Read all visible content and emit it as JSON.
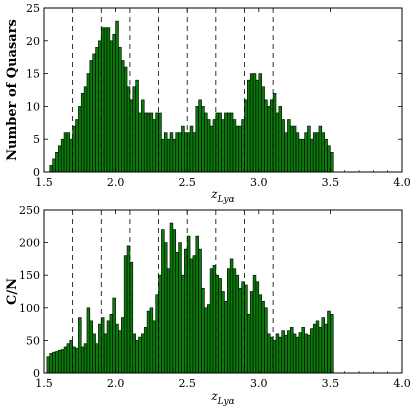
{
  "chart_data": [
    {
      "type": "bar",
      "xlabel": "z_Lyα",
      "ylabel": "Number of Quasars",
      "xlim": [
        1.5,
        4.0
      ],
      "ylim": [
        0,
        25
      ],
      "xticks": [
        "1.5",
        "2.0",
        "2.5",
        "3.0",
        "3.5",
        "4.0"
      ],
      "yticks": [
        "0",
        "5",
        "10",
        "15",
        "20",
        "25"
      ],
      "dashed_lines_x": [
        1.7,
        1.9,
        2.1,
        2.3,
        2.5,
        2.7,
        2.9,
        3.1
      ],
      "bar_color": "#0a7a0a",
      "bin_start": 1.52,
      "bin_width": 0.02,
      "values": [
        0,
        1,
        2,
        3,
        4,
        5,
        6,
        6,
        5,
        7,
        8,
        10,
        12,
        13,
        15,
        17,
        18,
        19,
        20,
        22,
        22,
        22,
        20,
        21,
        23,
        19,
        17,
        16,
        13,
        11,
        13,
        14,
        9,
        11,
        9,
        9,
        9,
        8,
        9,
        9,
        5,
        6,
        5,
        6,
        5,
        6,
        6,
        7,
        6,
        6,
        7,
        6,
        10,
        11,
        10,
        9,
        8,
        7,
        8,
        9,
        9,
        8,
        9,
        9,
        9,
        8,
        7,
        7,
        8,
        11,
        14,
        15,
        15,
        14,
        15,
        13,
        11,
        10,
        11,
        12,
        9,
        10,
        8,
        6,
        8,
        7,
        7,
        6,
        5,
        5,
        6,
        7,
        5,
        6,
        6,
        7,
        6,
        5,
        4,
        3
      ]
    },
    {
      "type": "bar",
      "xlabel": "z_Lyα",
      "ylabel": "C/N",
      "xlim": [
        1.5,
        4.0
      ],
      "ylim": [
        0,
        250
      ],
      "xticks": [
        "1.5",
        "2.0",
        "2.5",
        "3.0",
        "3.5",
        "4.0"
      ],
      "yticks": [
        "0",
        "50",
        "100",
        "150",
        "200",
        "250"
      ],
      "dashed_lines_x": [
        1.7,
        1.9,
        2.1,
        2.3,
        2.5,
        2.7,
        2.9,
        3.1
      ],
      "bar_color": "#0a7a0a",
      "bin_start": 1.52,
      "bin_width": 0.02,
      "values": [
        25,
        30,
        32,
        33,
        35,
        36,
        40,
        45,
        50,
        40,
        38,
        85,
        40,
        45,
        100,
        80,
        60,
        45,
        75,
        85,
        60,
        80,
        90,
        115,
        75,
        65,
        85,
        180,
        195,
        170,
        60,
        50,
        55,
        60,
        70,
        95,
        100,
        80,
        120,
        150,
        220,
        200,
        160,
        230,
        220,
        185,
        200,
        150,
        190,
        210,
        175,
        180,
        210,
        190,
        130,
        100,
        105,
        160,
        165,
        150,
        145,
        125,
        110,
        160,
        175,
        160,
        150,
        130,
        140,
        135,
        90,
        125,
        150,
        140,
        120,
        110,
        100,
        60,
        55,
        50,
        60,
        55,
        65,
        58,
        65,
        70,
        60,
        55,
        62,
        70,
        60,
        58,
        68,
        75,
        80,
        70,
        85,
        75,
        95,
        90
      ]
    }
  ]
}
